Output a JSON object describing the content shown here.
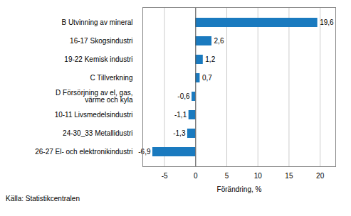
{
  "chart_data": {
    "type": "bar",
    "orientation": "horizontal",
    "categories": [
      "26-27 El- och elektronikindustri",
      "24-30_33 Metallidustri",
      "10-11 Livsmedelsindustri",
      "D Försörjning av el, gas,\nvärme och kyla",
      "C Tillverkning",
      "19-22 Kemisk industri",
      "16-17 Skogsindustri",
      "B Utvinning av mineral"
    ],
    "values": [
      -6.9,
      -1.3,
      -1.1,
      -0.6,
      0.7,
      1.2,
      2.6,
      19.6
    ],
    "value_labels": [
      "-6,9",
      "-1,3",
      "-1,1",
      "-0,6",
      "0,7",
      "1,2",
      "2,6",
      "19,6"
    ],
    "data_labels": true,
    "color": "#1a7abf",
    "xlabel": "Förändring, %",
    "source": "Källa: Statistikcentralen",
    "xlim": [
      -8.5,
      22.5
    ],
    "xticks": [
      -5,
      0,
      5,
      10,
      15,
      20
    ],
    "grid": "x"
  }
}
